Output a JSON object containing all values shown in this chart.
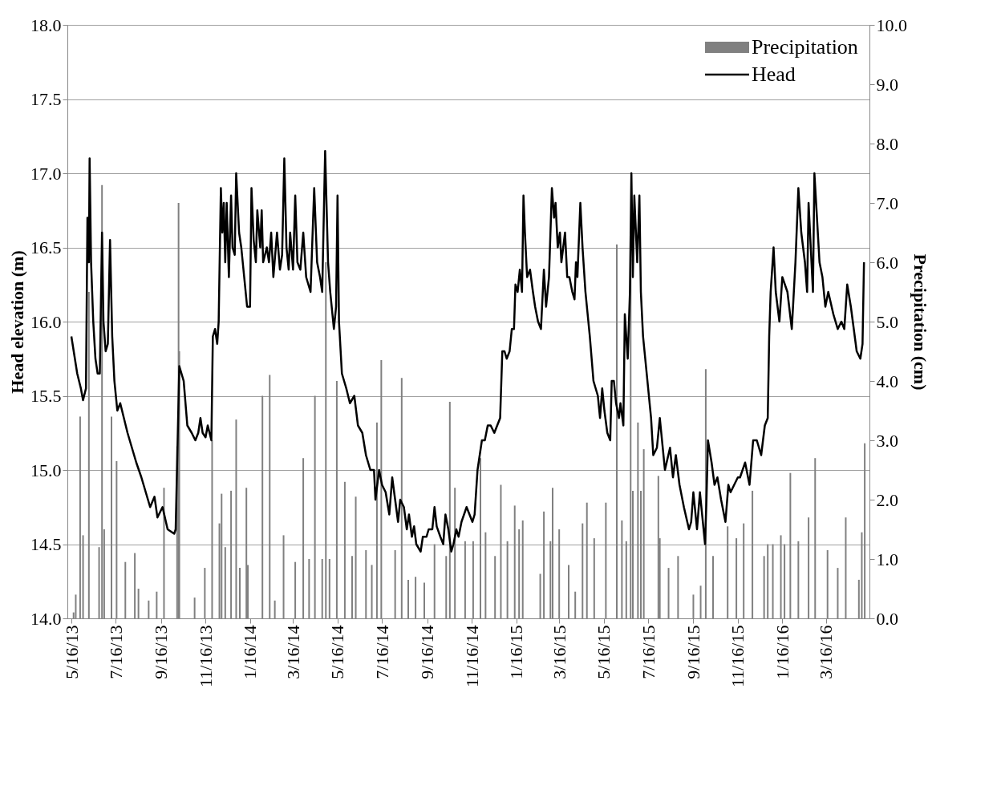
{
  "chart_data": {
    "type": "line",
    "ylabel": "Head elevation (m)",
    "y2label": "Precipitation (cm)",
    "grid": "y",
    "legend": "top right",
    "xlim": [
      "2013-05-16",
      "2016-05-09"
    ],
    "xticks": [
      {
        "value": "2013-05-16",
        "label": "5/16/13"
      },
      {
        "value": "2013-07-16",
        "label": "7/16/13"
      },
      {
        "value": "2013-09-16",
        "label": "9/16/13"
      },
      {
        "value": "2013-11-16",
        "label": "11/16/13"
      },
      {
        "value": "2014-01-16",
        "label": "1/16/14"
      },
      {
        "value": "2014-03-16",
        "label": "3/16/14"
      },
      {
        "value": "2014-05-16",
        "label": "5/16/14"
      },
      {
        "value": "2014-07-16",
        "label": "7/16/14"
      },
      {
        "value": "2014-09-16",
        "label": "9/16/14"
      },
      {
        "value": "2014-11-16",
        "label": "11/16/14"
      },
      {
        "value": "2015-01-16",
        "label": "1/16/15"
      },
      {
        "value": "2015-03-16",
        "label": "3/16/15"
      },
      {
        "value": "2015-05-16",
        "label": "5/16/15"
      },
      {
        "value": "2015-07-16",
        "label": "7/16/15"
      },
      {
        "value": "2015-09-16",
        "label": "9/16/15"
      },
      {
        "value": "2015-11-16",
        "label": "11/16/15"
      },
      {
        "value": "2016-01-16",
        "label": "1/16/16"
      },
      {
        "value": "2016-03-16",
        "label": "3/16/16"
      }
    ],
    "ylim": [
      14,
      18
    ],
    "yticks": [
      {
        "value": 14,
        "label": "14.0"
      },
      14.5,
      {
        "value": 15,
        "label": "15.0"
      },
      15.5,
      {
        "value": 16,
        "label": "16.0"
      },
      16.5,
      {
        "value": 17,
        "label": "17.0"
      },
      17.5,
      {
        "value": 18,
        "label": "18.0"
      }
    ],
    "y2lim": [
      0,
      10
    ],
    "y2ticks": [
      {
        "value": 0,
        "label": "0.0"
      },
      {
        "value": 1,
        "label": "1.0"
      },
      {
        "value": 2,
        "label": "2.0"
      },
      {
        "value": 3,
        "label": "3.0"
      },
      {
        "value": 4,
        "label": "4.0"
      },
      {
        "value": 5,
        "label": "5.0"
      },
      {
        "value": 6,
        "label": "6.0"
      },
      {
        "value": 7,
        "label": "7.0"
      },
      {
        "value": 8,
        "label": "8.0"
      },
      {
        "value": 9,
        "label": "9.0"
      },
      {
        "value": 10,
        "label": "10.0"
      }
    ],
    "series": [
      {
        "name": "Precipitation",
        "type": "bar",
        "axis": "y2",
        "color": "#808080",
        "x": [
          "2013-05-19",
          "2013-05-22",
          "2013-05-28",
          "2013-06-01",
          "2013-06-09",
          "2013-06-23",
          "2013-06-27",
          "2013-06-30",
          "2013-07-10",
          "2013-07-17",
          "2013-07-29",
          "2013-08-11",
          "2013-08-16",
          "2013-08-30",
          "2013-09-10",
          "2013-09-20",
          "2013-10-08",
          "2013-10-10",
          "2013-10-11",
          "2013-11-01",
          "2013-11-15",
          "2013-11-25",
          "2013-12-05",
          "2013-12-08",
          "2013-12-13",
          "2013-12-21",
          "2013-12-28",
          "2014-01-02",
          "2014-01-11",
          "2014-01-13",
          "2014-02-02",
          "2014-02-12",
          "2014-02-19",
          "2014-03-03",
          "2014-03-19",
          "2014-03-30",
          "2014-04-07",
          "2014-04-15",
          "2014-04-25",
          "2014-04-30",
          "2014-05-05",
          "2014-05-15",
          "2014-05-26",
          "2014-06-05",
          "2014-06-10",
          "2014-06-24",
          "2014-07-02",
          "2014-07-09",
          "2014-07-15",
          "2014-08-03",
          "2014-08-12",
          "2014-08-21",
          "2014-08-31",
          "2014-09-12",
          "2014-09-26",
          "2014-10-12",
          "2014-10-17",
          "2014-10-24",
          "2014-11-07",
          "2014-11-18",
          "2014-11-28",
          "2014-12-05",
          "2014-12-18",
          "2014-12-26",
          "2015-01-04",
          "2015-01-14",
          "2015-01-20",
          "2015-01-25",
          "2015-02-18",
          "2015-02-23",
          "2015-03-04",
          "2015-03-07",
          "2015-03-16",
          "2015-03-29",
          "2015-04-07",
          "2015-04-17",
          "2015-04-23",
          "2015-05-03",
          "2015-05-19",
          "2015-06-03",
          "2015-06-10",
          "2015-06-16",
          "2015-06-22",
          "2015-06-25",
          "2015-07-02",
          "2015-07-06",
          "2015-07-10",
          "2015-07-30",
          "2015-08-01",
          "2015-08-13",
          "2015-08-26",
          "2015-09-16",
          "2015-09-26",
          "2015-10-03",
          "2015-10-13",
          "2015-11-02",
          "2015-11-14",
          "2015-11-24",
          "2015-12-06",
          "2015-12-22",
          "2015-12-27",
          "2016-01-03",
          "2016-01-14",
          "2016-01-19",
          "2016-01-27",
          "2016-02-07",
          "2016-02-21",
          "2016-03-01",
          "2016-03-18",
          "2016-04-01",
          "2016-04-12",
          "2016-04-30",
          "2016-05-04",
          "2016-05-08"
        ],
        "values": [
          0.1,
          0.4,
          3.4,
          1.4,
          5.5,
          1.2,
          7.3,
          1.5,
          3.4,
          2.65,
          0.95,
          1.1,
          0.5,
          0.3,
          0.45,
          2.2,
          2.9,
          7.0,
          4.5,
          0.35,
          0.85,
          3.0,
          1.6,
          2.1,
          1.2,
          2.15,
          3.35,
          0.85,
          2.2,
          0.9,
          3.75,
          4.1,
          0.3,
          1.4,
          0.95,
          2.7,
          1.0,
          3.75,
          1.0,
          6.0,
          1.0,
          4.0,
          2.3,
          1.05,
          2.05,
          1.15,
          0.9,
          3.3,
          4.35,
          1.15,
          4.05,
          0.65,
          0.7,
          0.6,
          1.25,
          1.05,
          3.65,
          2.2,
          1.3,
          1.3,
          2.7,
          1.45,
          1.05,
          2.25,
          1.3,
          1.9,
          1.5,
          1.65,
          0.75,
          1.8,
          1.3,
          2.2,
          1.5,
          0.9,
          0.45,
          1.6,
          1.95,
          1.35,
          1.95,
          6.3,
          1.65,
          1.3,
          6.05,
          2.15,
          3.3,
          2.15,
          2.85,
          2.4,
          1.35,
          0.85,
          1.05,
          0.4,
          0.55,
          4.2,
          1.05,
          1.55,
          1.35,
          1.6,
          2.15,
          1.05,
          1.25,
          1.25,
          1.4,
          1.25,
          2.45,
          1.3,
          1.7,
          2.7,
          1.15,
          0.85,
          1.7,
          0.65,
          1.45,
          2.95
        ]
      },
      {
        "name": "Head",
        "color": "#000000",
        "x": [
          "2013-05-16",
          "2013-05-24",
          "2013-05-29",
          "2013-06-01",
          "2013-06-05",
          "2013-06-07",
          "2013-06-09",
          "2013-06-10",
          "2013-06-12",
          "2013-06-15",
          "2013-06-18",
          "2013-06-21",
          "2013-06-24",
          "2013-06-27",
          "2013-06-29",
          "2013-07-02",
          "2013-07-05",
          "2013-07-08",
          "2013-07-11",
          "2013-07-14",
          "2013-07-18",
          "2013-07-22",
          "2013-07-27",
          "2013-08-01",
          "2013-08-07",
          "2013-08-13",
          "2013-08-20",
          "2013-08-26",
          "2013-09-01",
          "2013-09-07",
          "2013-09-11",
          "2013-09-18",
          "2013-09-25",
          "2013-10-04",
          "2013-10-06",
          "2013-10-11",
          "2013-10-17",
          "2013-10-22",
          "2013-10-28",
          "2013-11-02",
          "2013-11-06",
          "2013-11-09",
          "2013-11-12",
          "2013-11-16",
          "2013-11-19",
          "2013-11-24",
          "2013-11-26",
          "2013-11-29",
          "2013-12-02",
          "2013-12-04",
          "2013-12-07",
          "2013-12-09",
          "2013-12-11",
          "2013-12-13",
          "2013-12-15",
          "2013-12-18",
          "2013-12-21",
          "2013-12-23",
          "2013-12-26",
          "2013-12-28",
          "2014-01-01",
          "2014-01-04",
          "2014-01-08",
          "2014-01-12",
          "2014-01-16",
          "2014-01-18",
          "2014-01-21",
          "2014-01-24",
          "2014-01-26",
          "2014-01-30",
          "2014-02-01",
          "2014-02-03",
          "2014-02-08",
          "2014-02-11",
          "2014-02-14",
          "2014-02-17",
          "2014-02-22",
          "2014-02-26",
          "2014-03-01",
          "2014-03-04",
          "2014-03-07",
          "2014-03-10",
          "2014-03-12",
          "2014-03-16",
          "2014-03-19",
          "2014-03-22",
          "2014-03-26",
          "2014-03-30",
          "2014-04-03",
          "2014-04-09",
          "2014-04-14",
          "2014-04-18",
          "2014-04-22",
          "2014-04-25",
          "2014-04-29",
          "2014-05-03",
          "2014-05-06",
          "2014-05-11",
          "2014-05-14",
          "2014-05-16",
          "2014-05-18",
          "2014-05-22",
          "2014-05-28",
          "2014-06-02",
          "2014-06-08",
          "2014-06-13",
          "2014-06-19",
          "2014-06-24",
          "2014-06-30",
          "2014-07-05",
          "2014-07-07",
          "2014-07-12",
          "2014-07-16",
          "2014-07-21",
          "2014-07-26",
          "2014-07-30",
          "2014-08-03",
          "2014-08-07",
          "2014-08-10",
          "2014-08-15",
          "2014-08-19",
          "2014-08-22",
          "2014-08-26",
          "2014-08-29",
          "2014-09-01",
          "2014-09-07",
          "2014-09-10",
          "2014-09-15",
          "2014-09-18",
          "2014-09-23",
          "2014-09-26",
          "2014-09-29",
          "2014-10-04",
          "2014-10-08",
          "2014-10-11",
          "2014-10-15",
          "2014-10-19",
          "2014-10-22",
          "2014-10-26",
          "2014-10-29",
          "2014-11-02",
          "2014-11-09",
          "2014-11-13",
          "2014-11-17",
          "2014-11-20",
          "2014-11-24",
          "2014-11-27",
          "2014-11-30",
          "2014-12-04",
          "2014-12-08",
          "2014-12-12",
          "2014-12-17",
          "2014-12-21",
          "2014-12-25",
          "2014-12-28",
          "2014-12-31",
          "2015-01-03",
          "2015-01-07",
          "2015-01-10",
          "2015-01-13",
          "2015-01-15",
          "2015-01-18",
          "2015-01-21",
          "2015-01-24",
          "2015-01-26",
          "2015-01-28",
          "2015-01-31",
          "2015-02-04",
          "2015-02-08",
          "2015-02-11",
          "2015-02-15",
          "2015-02-19",
          "2015-02-23",
          "2015-02-26",
          "2015-03-02",
          "2015-03-06",
          "2015-03-09",
          "2015-03-11",
          "2015-03-14",
          "2015-03-17",
          "2015-03-19",
          "2015-03-24",
          "2015-03-27",
          "2015-03-30",
          "2015-04-03",
          "2015-04-06",
          "2015-04-08",
          "2015-04-10",
          "2015-04-14",
          "2015-04-17",
          "2015-04-21",
          "2015-04-27",
          "2015-05-02",
          "2015-05-08",
          "2015-05-11",
          "2015-05-14",
          "2015-05-17",
          "2015-05-21",
          "2015-05-25",
          "2015-05-27",
          "2015-05-30",
          "2015-06-02",
          "2015-06-06",
          "2015-06-08",
          "2015-06-12",
          "2015-06-14",
          "2015-06-18",
          "2015-06-21",
          "2015-06-23",
          "2015-06-25",
          "2015-06-27",
          "2015-07-01",
          "2015-07-04",
          "2015-07-06",
          "2015-07-09",
          "2015-07-15",
          "2015-07-20",
          "2015-07-23",
          "2015-07-28",
          "2015-08-01",
          "2015-08-08",
          "2015-08-15",
          "2015-08-19",
          "2015-08-23",
          "2015-08-28",
          "2015-09-03",
          "2015-09-10",
          "2015-09-13",
          "2015-09-16",
          "2015-09-21",
          "2015-09-25",
          "2015-10-02",
          "2015-10-04",
          "2015-10-06",
          "2015-10-11",
          "2015-10-15",
          "2015-10-19",
          "2015-10-24",
          "2015-10-30",
          "2015-11-03",
          "2015-11-06",
          "2015-11-11",
          "2015-11-16",
          "2015-11-19",
          "2015-11-26",
          "2015-12-02",
          "2015-12-07",
          "2015-12-12",
          "2015-12-18",
          "2015-12-23",
          "2015-12-27",
          "2015-12-29",
          "2015-12-31",
          "2016-01-04",
          "2016-01-07",
          "2016-01-12",
          "2016-01-16",
          "2016-01-23",
          "2016-01-29",
          "2016-02-03",
          "2016-02-07",
          "2016-02-11",
          "2016-02-16",
          "2016-02-19",
          "2016-02-21",
          "2016-02-27",
          "2016-02-29",
          "2016-03-07",
          "2016-03-11",
          "2016-03-15",
          "2016-03-19",
          "2016-03-26",
          "2016-04-01",
          "2016-04-06",
          "2016-04-10",
          "2016-04-14",
          "2016-04-19",
          "2016-04-23",
          "2016-04-27",
          "2016-05-02",
          "2016-05-05",
          "2016-05-07"
        ],
        "values": [
          15.9,
          15.65,
          15.55,
          15.47,
          15.55,
          16.7,
          16.4,
          17.1,
          16.4,
          16.0,
          15.75,
          15.65,
          15.65,
          16.6,
          16.0,
          15.8,
          15.85,
          16.55,
          15.9,
          15.6,
          15.4,
          15.45,
          15.35,
          15.25,
          15.15,
          15.05,
          14.95,
          14.85,
          14.75,
          14.82,
          14.68,
          14.75,
          14.6,
          14.57,
          14.6,
          15.7,
          15.6,
          15.3,
          15.25,
          15.2,
          15.25,
          15.35,
          15.25,
          15.22,
          15.3,
          15.2,
          15.9,
          15.95,
          15.85,
          16.0,
          16.9,
          16.6,
          16.8,
          16.4,
          16.8,
          16.3,
          16.85,
          16.5,
          16.45,
          17.0,
          16.6,
          16.5,
          16.3,
          16.1,
          16.1,
          16.9,
          16.55,
          16.4,
          16.75,
          16.5,
          16.75,
          16.4,
          16.5,
          16.4,
          16.6,
          16.3,
          16.6,
          16.35,
          16.45,
          17.1,
          16.5,
          16.35,
          16.6,
          16.35,
          16.85,
          16.4,
          16.35,
          16.6,
          16.3,
          16.2,
          16.9,
          16.4,
          16.3,
          16.2,
          17.15,
          16.4,
          16.2,
          15.95,
          16.1,
          16.85,
          16.0,
          15.65,
          15.55,
          15.45,
          15.5,
          15.3,
          15.25,
          15.1,
          15.0,
          15.0,
          14.8,
          15.0,
          14.9,
          14.85,
          14.7,
          14.95,
          14.8,
          14.65,
          14.8,
          14.75,
          14.6,
          14.7,
          14.55,
          14.62,
          14.5,
          14.45,
          14.55,
          14.55,
          14.6,
          14.6,
          14.75,
          14.62,
          14.55,
          14.5,
          14.7,
          14.6,
          14.45,
          14.5,
          14.6,
          14.55,
          14.65,
          14.75,
          14.7,
          14.65,
          14.7,
          15.0,
          15.1,
          15.2,
          15.2,
          15.3,
          15.3,
          15.25,
          15.3,
          15.35,
          15.8,
          15.8,
          15.75,
          15.8,
          15.95,
          15.95,
          16.25,
          16.2,
          16.35,
          16.2,
          16.85,
          16.6,
          16.3,
          16.35,
          16.2,
          16.1,
          16.0,
          15.95,
          16.35,
          16.1,
          16.3,
          16.9,
          16.7,
          16.8,
          16.5,
          16.6,
          16.4,
          16.6,
          16.3,
          16.3,
          16.2,
          16.15,
          16.4,
          16.3,
          16.8,
          16.5,
          16.2,
          15.9,
          15.6,
          15.5,
          15.35,
          15.55,
          15.4,
          15.25,
          15.2,
          15.6,
          15.6,
          15.45,
          15.35,
          15.45,
          15.3,
          16.05,
          15.75,
          16.2,
          17.0,
          16.3,
          16.85,
          16.4,
          16.85,
          16.2,
          15.9,
          15.6,
          15.35,
          15.1,
          15.15,
          15.35,
          15.0,
          15.15,
          14.95,
          15.1,
          14.9,
          14.75,
          14.6,
          14.65,
          14.85,
          14.6,
          14.85,
          14.5,
          14.8,
          15.2,
          15.05,
          14.9,
          14.95,
          14.8,
          14.65,
          14.9,
          14.85,
          14.9,
          14.95,
          14.95,
          15.05,
          14.9,
          15.2,
          15.2,
          15.1,
          15.3,
          15.35,
          15.9,
          16.2,
          16.5,
          16.2,
          16.0,
          16.3,
          16.2,
          15.95,
          16.4,
          16.9,
          16.6,
          16.4,
          16.2,
          16.8,
          16.2,
          17.0,
          16.4,
          16.3,
          16.1,
          16.2,
          16.05,
          15.95,
          16.0,
          15.95,
          16.25,
          16.1,
          15.95,
          15.8,
          15.75,
          15.85,
          16.4
        ]
      }
    ]
  }
}
